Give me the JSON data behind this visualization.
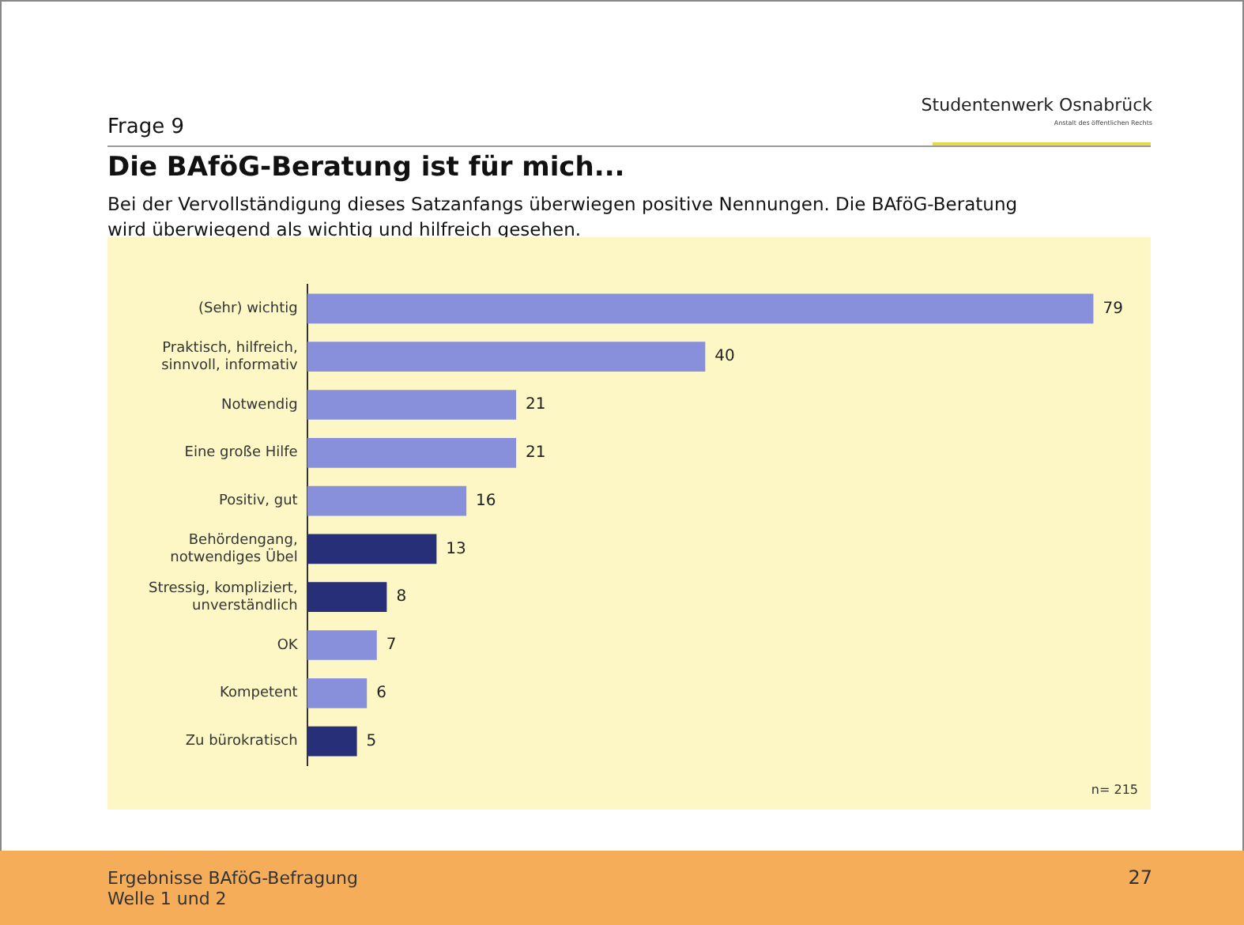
{
  "chart_data": {
    "type": "bar",
    "orientation": "horizontal",
    "title": "Die BAföG-Beratung ist für mich...",
    "subtitle": "Bei der Vervollständigung dieses Satzanfangs überwiegen positive Nennungen. Die BAföG-Beratung wird überwiegend als wichtig und hilfreich gesehen.",
    "categories": [
      "(Sehr) wichtig",
      "Praktisch, hilfreich,\nsinnvoll, informativ",
      "Notwendig",
      "Eine große Hilfe",
      "Positiv, gut",
      "Behördengang,\nnotwendiges Übel",
      "Stressig, kompliziert,\nunverständlich",
      "OK",
      "Kompetent",
      "Zu bürokratisch"
    ],
    "values": [
      79,
      40,
      21,
      21,
      16,
      13,
      8,
      7,
      6,
      5
    ],
    "colors": [
      "#8890dc",
      "#8890dc",
      "#8890dc",
      "#8890dc",
      "#8890dc",
      "#262f78",
      "#262f78",
      "#8890dc",
      "#8890dc",
      "#262f78"
    ],
    "data_labels": true,
    "legend": false,
    "tick_labels": "y",
    "annotations": [
      "Frage 9",
      "Studentenwerk Osnabrück",
      "Anstalt des öffentlichen Rechts",
      "n= 215",
      "Ergebnisse BAföG-Befragung\nWelle 1 und 2",
      "27"
    ]
  }
}
